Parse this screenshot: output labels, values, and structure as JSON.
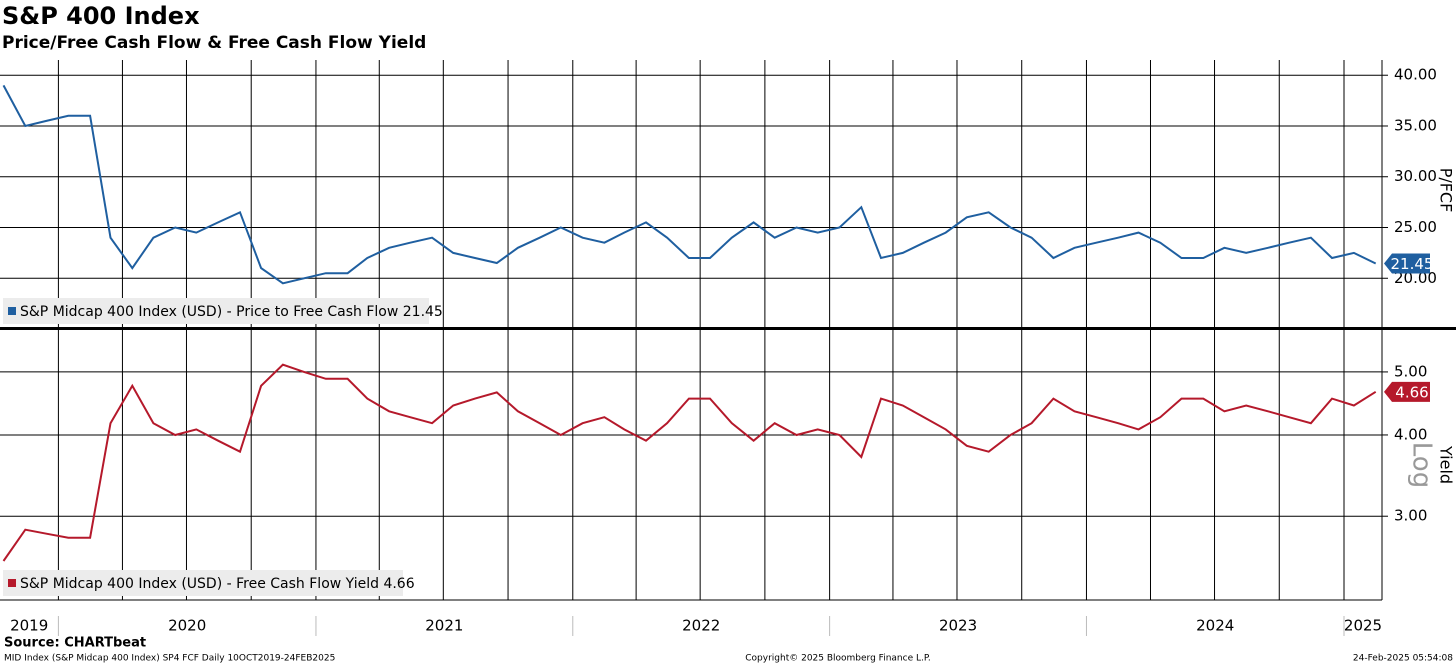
{
  "title": "S&P 400 Index",
  "subtitle": "Price/Free Cash Flow & Free Cash Flow Yield",
  "source": "Source: CHARTbeat",
  "footer": {
    "left": "MID Index (S&P Midcap 400 Index) SP4 FCF  Daily 10OCT2019-24FEB2025",
    "center": "Copyright© 2025 Bloomberg Finance L.P.",
    "right": "24-Feb-2025 05:54:08"
  },
  "x_axis": {
    "xlim": [
      "2019-10-10",
      "2025-02-24"
    ],
    "xticks": [
      "2020-01",
      "2020-04",
      "2020-07",
      "2020-10",
      "2021-01",
      "2021-04",
      "2021-07",
      "2021-10",
      "2022-01",
      "2022-04",
      "2022-07",
      "2022-10",
      "2023-01",
      "2023-04",
      "2023-07",
      "2023-10",
      "2024-01",
      "2024-04",
      "2024-07",
      "2024-10",
      "2025-01"
    ],
    "labels": [
      "2019",
      "2020",
      "2021",
      "2022",
      "2023",
      "2024",
      "2025"
    ]
  },
  "chart_data": [
    {
      "type": "line",
      "ylabel": "P/FCF",
      "ylim": [
        15.1,
        41.5
      ],
      "yticks": [
        {
          "value": 20,
          "label": "20.00"
        },
        {
          "value": 25,
          "label": "25.00"
        },
        {
          "value": 30,
          "label": "30.00"
        },
        {
          "value": 35,
          "label": "35.00"
        },
        {
          "value": 40,
          "label": "40.00"
        }
      ],
      "grid": true,
      "last_value_label": "21.45",
      "x": [
        "2019-10",
        "2019-11",
        "2019-12",
        "2020-01",
        "2020-02",
        "2020-03",
        "2020-04",
        "2020-05",
        "2020-06",
        "2020-07",
        "2020-08",
        "2020-09",
        "2020-10",
        "2020-11",
        "2020-12",
        "2021-01",
        "2021-02",
        "2021-03",
        "2021-04",
        "2021-05",
        "2021-06",
        "2021-07",
        "2021-08",
        "2021-09",
        "2021-10",
        "2021-11",
        "2021-12",
        "2022-01",
        "2022-02",
        "2022-03",
        "2022-04",
        "2022-05",
        "2022-06",
        "2022-07",
        "2022-08",
        "2022-09",
        "2022-10",
        "2022-11",
        "2022-12",
        "2023-01",
        "2023-02",
        "2023-03",
        "2023-04",
        "2023-05",
        "2023-06",
        "2023-07",
        "2023-08",
        "2023-09",
        "2023-10",
        "2023-11",
        "2023-12",
        "2024-01",
        "2024-02",
        "2024-03",
        "2024-04",
        "2024-05",
        "2024-06",
        "2024-07",
        "2024-08",
        "2024-09",
        "2024-10",
        "2024-11",
        "2024-12",
        "2025-01",
        "2025-02"
      ],
      "series": [
        {
          "name": "S&P Midcap 400 Index (USD) - Price to Free Cash Flow 21.45",
          "color": "#1f5fa0",
          "values": [
            39.0,
            35.0,
            35.5,
            36.0,
            36.0,
            24.0,
            21.0,
            24.0,
            25.0,
            24.5,
            25.5,
            26.5,
            21.0,
            19.5,
            20.0,
            20.5,
            20.5,
            22.0,
            23.0,
            23.5,
            24.0,
            22.5,
            22.0,
            21.5,
            23.0,
            24.0,
            25.0,
            24.0,
            23.5,
            24.5,
            25.5,
            24.0,
            22.0,
            22.0,
            24.0,
            25.5,
            24.0,
            25.0,
            24.5,
            25.0,
            27.0,
            22.0,
            22.5,
            23.5,
            24.5,
            26.0,
            26.5,
            25.0,
            24.0,
            22.0,
            23.0,
            23.5,
            24.0,
            24.5,
            23.5,
            22.0,
            22.0,
            23.0,
            22.5,
            23.0,
            23.5,
            24.0,
            22.0,
            22.5,
            21.45
          ]
        }
      ]
    },
    {
      "type": "line",
      "ylabel": "Yield",
      "annotation": "Log",
      "log": true,
      "ylim": [
        2.23,
        5.8
      ],
      "yticks": [
        {
          "value": 3,
          "label": "3.00"
        },
        {
          "value": 4,
          "label": "4.00"
        },
        {
          "value": 5,
          "label": "5.00"
        }
      ],
      "grid": true,
      "last_value_label": "4.66",
      "x": [
        "2019-10",
        "2019-11",
        "2019-12",
        "2020-01",
        "2020-02",
        "2020-03",
        "2020-04",
        "2020-05",
        "2020-06",
        "2020-07",
        "2020-08",
        "2020-09",
        "2020-10",
        "2020-11",
        "2020-12",
        "2021-01",
        "2021-02",
        "2021-03",
        "2021-04",
        "2021-05",
        "2021-06",
        "2021-07",
        "2021-08",
        "2021-09",
        "2021-10",
        "2021-11",
        "2021-12",
        "2022-01",
        "2022-02",
        "2022-03",
        "2022-04",
        "2022-05",
        "2022-06",
        "2022-07",
        "2022-08",
        "2022-09",
        "2022-10",
        "2022-11",
        "2022-12",
        "2023-01",
        "2023-02",
        "2023-03",
        "2023-04",
        "2023-05",
        "2023-06",
        "2023-07",
        "2023-08",
        "2023-09",
        "2023-10",
        "2023-11",
        "2023-12",
        "2024-01",
        "2024-02",
        "2024-03",
        "2024-04",
        "2024-05",
        "2024-06",
        "2024-07",
        "2024-08",
        "2024-09",
        "2024-10",
        "2024-11",
        "2024-12",
        "2025-01",
        "2025-02"
      ],
      "series": [
        {
          "name": "S&P Midcap 400 Index (USD) - Free Cash Flow Yield 4.66",
          "color": "#b5192b",
          "values": [
            2.56,
            2.86,
            2.82,
            2.78,
            2.78,
            4.17,
            4.76,
            4.17,
            4.0,
            4.08,
            3.92,
            3.77,
            4.76,
            5.13,
            5.0,
            4.88,
            4.88,
            4.55,
            4.35,
            4.26,
            4.17,
            4.44,
            4.55,
            4.65,
            4.35,
            4.17,
            4.0,
            4.17,
            4.26,
            4.08,
            3.92,
            4.17,
            4.55,
            4.55,
            4.17,
            3.92,
            4.17,
            4.0,
            4.08,
            4.0,
            3.7,
            4.55,
            4.44,
            4.26,
            4.08,
            3.85,
            3.77,
            4.0,
            4.17,
            4.55,
            4.35,
            4.26,
            4.17,
            4.08,
            4.26,
            4.55,
            4.55,
            4.35,
            4.44,
            4.35,
            4.26,
            4.17,
            4.55,
            4.44,
            4.66
          ]
        }
      ]
    }
  ]
}
